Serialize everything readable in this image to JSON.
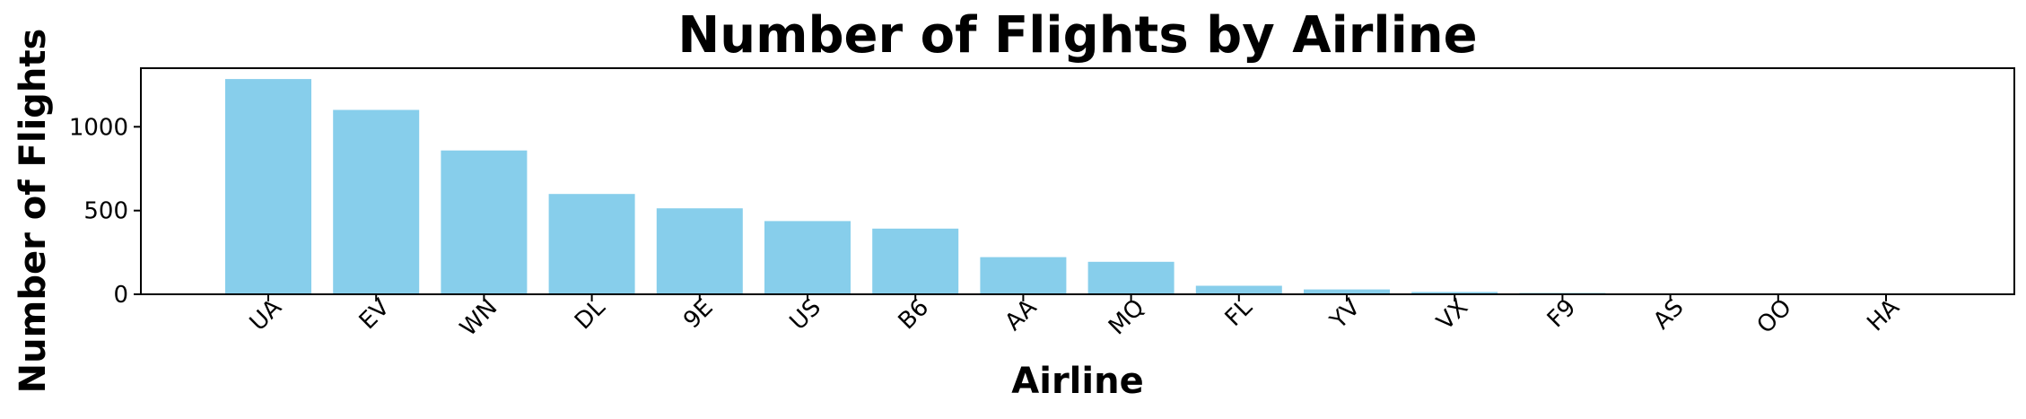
{
  "chart_data": {
    "type": "bar",
    "title": "Number of Flights by Airline",
    "xlabel": "Airline",
    "ylabel": "Number of Flights",
    "categories": [
      "UA",
      "EV",
      "WN",
      "DL",
      "9E",
      "US",
      "B6",
      "AA",
      "MQ",
      "FL",
      "YV",
      "VX",
      "F9",
      "AS",
      "OO",
      "HA"
    ],
    "values": [
      1285,
      1101,
      859,
      599,
      513,
      437,
      392,
      222,
      194,
      51,
      29,
      14,
      8,
      2,
      1,
      1
    ],
    "ylim": [
      0,
      1350
    ],
    "yticks": [
      0,
      500,
      1000
    ],
    "ytick_labels": [
      "0",
      "500",
      "1000"
    ],
    "bar_color": "#87ceeb",
    "grid": false,
    "legend": "none"
  }
}
